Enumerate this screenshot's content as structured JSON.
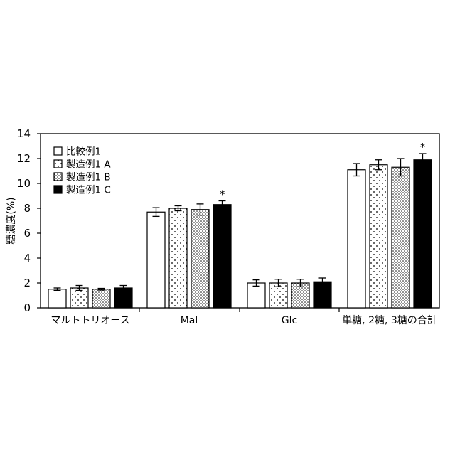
{
  "chart_data": {
    "type": "bar",
    "ylabel": "糖濃度(%)",
    "ylim": [
      0,
      14
    ],
    "yticks": [
      0,
      2,
      4,
      6,
      8,
      10,
      12,
      14
    ],
    "grid": false,
    "legend_position": "top-left",
    "categories": [
      "マルトトリオース",
      "Mal",
      "Glc",
      "単糖, 2糖, 3糖の合計"
    ],
    "series": [
      {
        "name": "比較例1",
        "pattern": "white",
        "values": [
          1.5,
          7.7,
          2.0,
          11.1
        ],
        "errors": [
          0.1,
          0.35,
          0.25,
          0.5
        ]
      },
      {
        "name": "製造例1 A",
        "pattern": "dots-sparse",
        "values": [
          1.6,
          8.0,
          2.0,
          11.5
        ],
        "errors": [
          0.2,
          0.2,
          0.3,
          0.4
        ]
      },
      {
        "name": "製造例1 B",
        "pattern": "dots-dense",
        "values": [
          1.5,
          7.9,
          2.0,
          11.3
        ],
        "errors": [
          0.07,
          0.45,
          0.3,
          0.7
        ]
      },
      {
        "name": "製造例1 C",
        "pattern": "black",
        "values": [
          1.6,
          8.3,
          2.1,
          11.9
        ],
        "errors": [
          0.2,
          0.3,
          0.3,
          0.5
        ]
      }
    ],
    "annotations": [
      {
        "category": "Mal",
        "series": "製造例1 C",
        "text": "*"
      },
      {
        "category": "単糖, 2糖, 3糖の合計",
        "series": "製造例1 C",
        "text": "*"
      }
    ]
  }
}
